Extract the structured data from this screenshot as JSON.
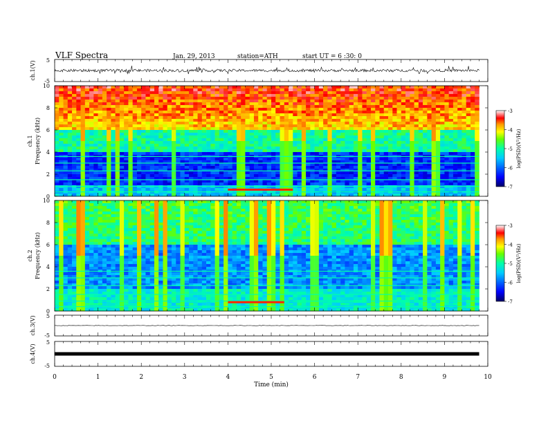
{
  "header": {
    "title": "VLF  Spectra",
    "date": "Jan. 29, 2013",
    "station": "station=ATH",
    "start_ut": "start  UT  =   6  :30: 0"
  },
  "colors": {
    "scale": [
      "#000066",
      "#0000ff",
      "#00aaff",
      "#00ffaa",
      "#66ff00",
      "#ffff00",
      "#ff9900",
      "#ff0000",
      "#ffffff"
    ]
  },
  "chart_data": [
    {
      "type": "line",
      "panel": "ch1-waveform",
      "ylabel": "ch.1(V)",
      "ylim": [
        -5,
        5
      ],
      "yticks": [
        "5",
        "-5"
      ],
      "xlim": [
        0,
        10
      ],
      "signal": "noisy broadband waveform, baseline about 0 V, spikes roughly -2 to +2 V"
    },
    {
      "type": "heatmap",
      "panel": "ch1-spectrogram",
      "ylabel_top": "ch.1",
      "ylabel": "Frequency  (kHz)",
      "ylim": [
        0,
        10
      ],
      "yticks": [
        "0",
        "2",
        "4",
        "6",
        "8",
        "10"
      ],
      "xlim": [
        0,
        10
      ],
      "data_end_min": 9.8,
      "colorbar": {
        "label": "log(PSD)(V²/Hz)",
        "range": [
          -7,
          -3
        ],
        "ticks": [
          "-3",
          "-4",
          "-5",
          "-6",
          "-7"
        ]
      },
      "features": [
        "high PSD (yellow/red, about -4 to -3) above 6 kHz",
        "low PSD (blue, about -6 to -7) between 1 and 4 kHz",
        "strong narrow band near 0.5 kHz from about 4 to 5.5 min",
        "many vertical broadband spherics"
      ]
    },
    {
      "type": "heatmap",
      "panel": "ch2-spectrogram",
      "ylabel_top": "ch.2",
      "ylabel": "Frequency  (kHz)",
      "ylim": [
        0,
        10
      ],
      "yticks": [
        "0",
        "2",
        "4",
        "6",
        "8",
        "10"
      ],
      "xlim": [
        0,
        10
      ],
      "data_end_min": 9.8,
      "colorbar": {
        "label": "log(PSD)(V²/Hz)",
        "range": [
          -7,
          -3
        ],
        "ticks": [
          "-3",
          "-4",
          "-5",
          "-6",
          "-7"
        ]
      },
      "features": [
        "mostly green (about -5) above 6 kHz",
        "blue (about -6) between 2 and 6 kHz",
        "narrow band near 0.8 kHz from about 4 to 5.3 min"
      ]
    },
    {
      "type": "line",
      "panel": "ch3-waveform",
      "ylabel": "ch.3(V)",
      "ylim": [
        -5,
        5
      ],
      "yticks": [
        "5",
        "-5"
      ],
      "xlim": [
        0,
        10
      ],
      "signal": "nearly flat at about 0 V"
    },
    {
      "type": "line",
      "panel": "ch4-waveform",
      "ylabel": "ch.4(V)",
      "ylim": [
        -5,
        5
      ],
      "yticks": [
        "5",
        "-5"
      ],
      "xlim": [
        0,
        10
      ],
      "signal": "constant band at about 0 V (amplitude about ±0.3 V)",
      "xlabel": "Time  (min)",
      "xticks": [
        "0",
        "1",
        "2",
        "3",
        "4",
        "5",
        "6",
        "7",
        "8",
        "9",
        "10"
      ]
    }
  ]
}
